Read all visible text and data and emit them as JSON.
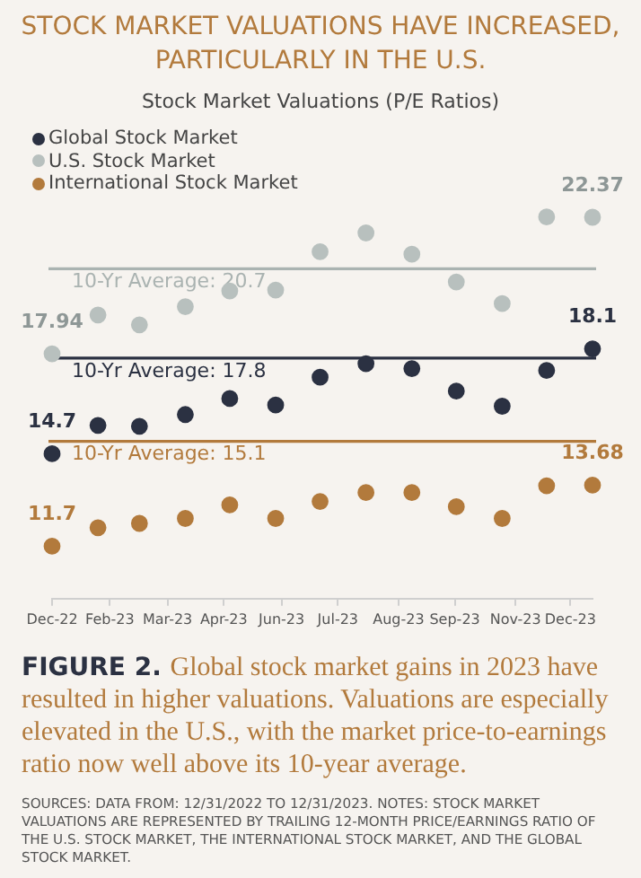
{
  "chart_data": {
    "type": "scatter",
    "title": "STOCK MARKET VALUATIONS HAVE INCREASED, PARTICULARLY IN THE U.S.",
    "subtitle": "Stock Market Valuations (P/E Ratios)",
    "x": [
      "2022-12-31",
      "2023-01-31",
      "2023-02-28",
      "2023-03-31",
      "2023-04-30",
      "2023-05-31",
      "2023-06-30",
      "2023-07-31",
      "2023-08-31",
      "2023-09-30",
      "2023-10-31",
      "2023-11-30",
      "2023-12-31"
    ],
    "xlim": [
      "2022-12-31",
      "2023-12-31"
    ],
    "xticks": [
      {
        "value": "2022-12-31",
        "label": "Dec-22"
      },
      {
        "value": "2023-02-08",
        "label": "Feb-23"
      },
      {
        "value": "2023-03-19",
        "label": "Mar-23"
      },
      {
        "value": "2023-04-26",
        "label": "Apr-23"
      },
      {
        "value": "2023-06-04",
        "label": "Jun-23"
      },
      {
        "value": "2023-07-12",
        "label": "Jul-23"
      },
      {
        "value": "2023-08-22",
        "label": "Aug-23"
      },
      {
        "value": "2023-09-29",
        "label": "Sep-23"
      },
      {
        "value": "2023-11-09",
        "label": "Nov-23"
      },
      {
        "value": "2023-12-16",
        "label": "Dec-23"
      }
    ],
    "series": [
      {
        "name": "Global Stock Market",
        "color": "#2b3142",
        "values": [
          14.7,
          15.62,
          15.59,
          15.97,
          16.49,
          16.28,
          17.18,
          17.62,
          17.46,
          16.73,
          16.24,
          17.4,
          18.1
        ],
        "value_labels": [
          "14.7",
          null,
          null,
          null,
          null,
          null,
          null,
          null,
          null,
          null,
          null,
          null,
          "18.1"
        ]
      },
      {
        "name": "U.S. Stock Market",
        "color": "#b8c0be",
        "values": [
          17.94,
          19.2,
          18.88,
          19.47,
          19.98,
          20.01,
          21.25,
          21.86,
          21.17,
          20.27,
          19.57,
          22.38,
          22.37
        ],
        "value_labels": [
          "17.94",
          null,
          null,
          null,
          null,
          null,
          null,
          null,
          null,
          null,
          null,
          null,
          "22.37"
        ]
      },
      {
        "name": "International Stock Market",
        "color": "#b27a3c",
        "values": [
          11.7,
          12.3,
          12.44,
          12.6,
          13.04,
          12.6,
          13.15,
          13.44,
          13.44,
          12.98,
          12.6,
          13.66,
          13.68
        ],
        "value_labels": [
          "11.7",
          null,
          null,
          null,
          null,
          null,
          null,
          null,
          null,
          null,
          null,
          null,
          "13.68"
        ]
      }
    ],
    "ref_lines": [
      {
        "axis": "y",
        "value": 20.7,
        "label": "10-Yr Average: 20.7",
        "color": "#aab3b1"
      },
      {
        "axis": "y",
        "value": 17.8,
        "label": "10-Yr Average: 17.8",
        "color": "#2b3142"
      },
      {
        "axis": "y",
        "value": 15.1,
        "label": "10-Yr Average: 15.1",
        "color": "#b27a3c"
      }
    ],
    "annotations": [
      "FIGURE 2.",
      "Global stock market gains in 2023 have resulted in higher valuations. Valuations are especially elevated in the U.S., with the market price-to-earnings ratio now well above its 10-year average.",
      "SOURCES: DATA FROM: 12/31/2022 TO 12/31/2023. NOTES: STOCK MARKET VALUATIONS ARE REPRESENTED BY TRAILING 12-MONTH PRICE/EARNINGS RATIO OF THE U.S. STOCK MARKET, THE INTERNATIONAL STOCK MARKET, AND THE GLOBAL STOCK MARKET."
    ],
    "legend": "top left",
    "marker": "circle",
    "grid": false
  }
}
